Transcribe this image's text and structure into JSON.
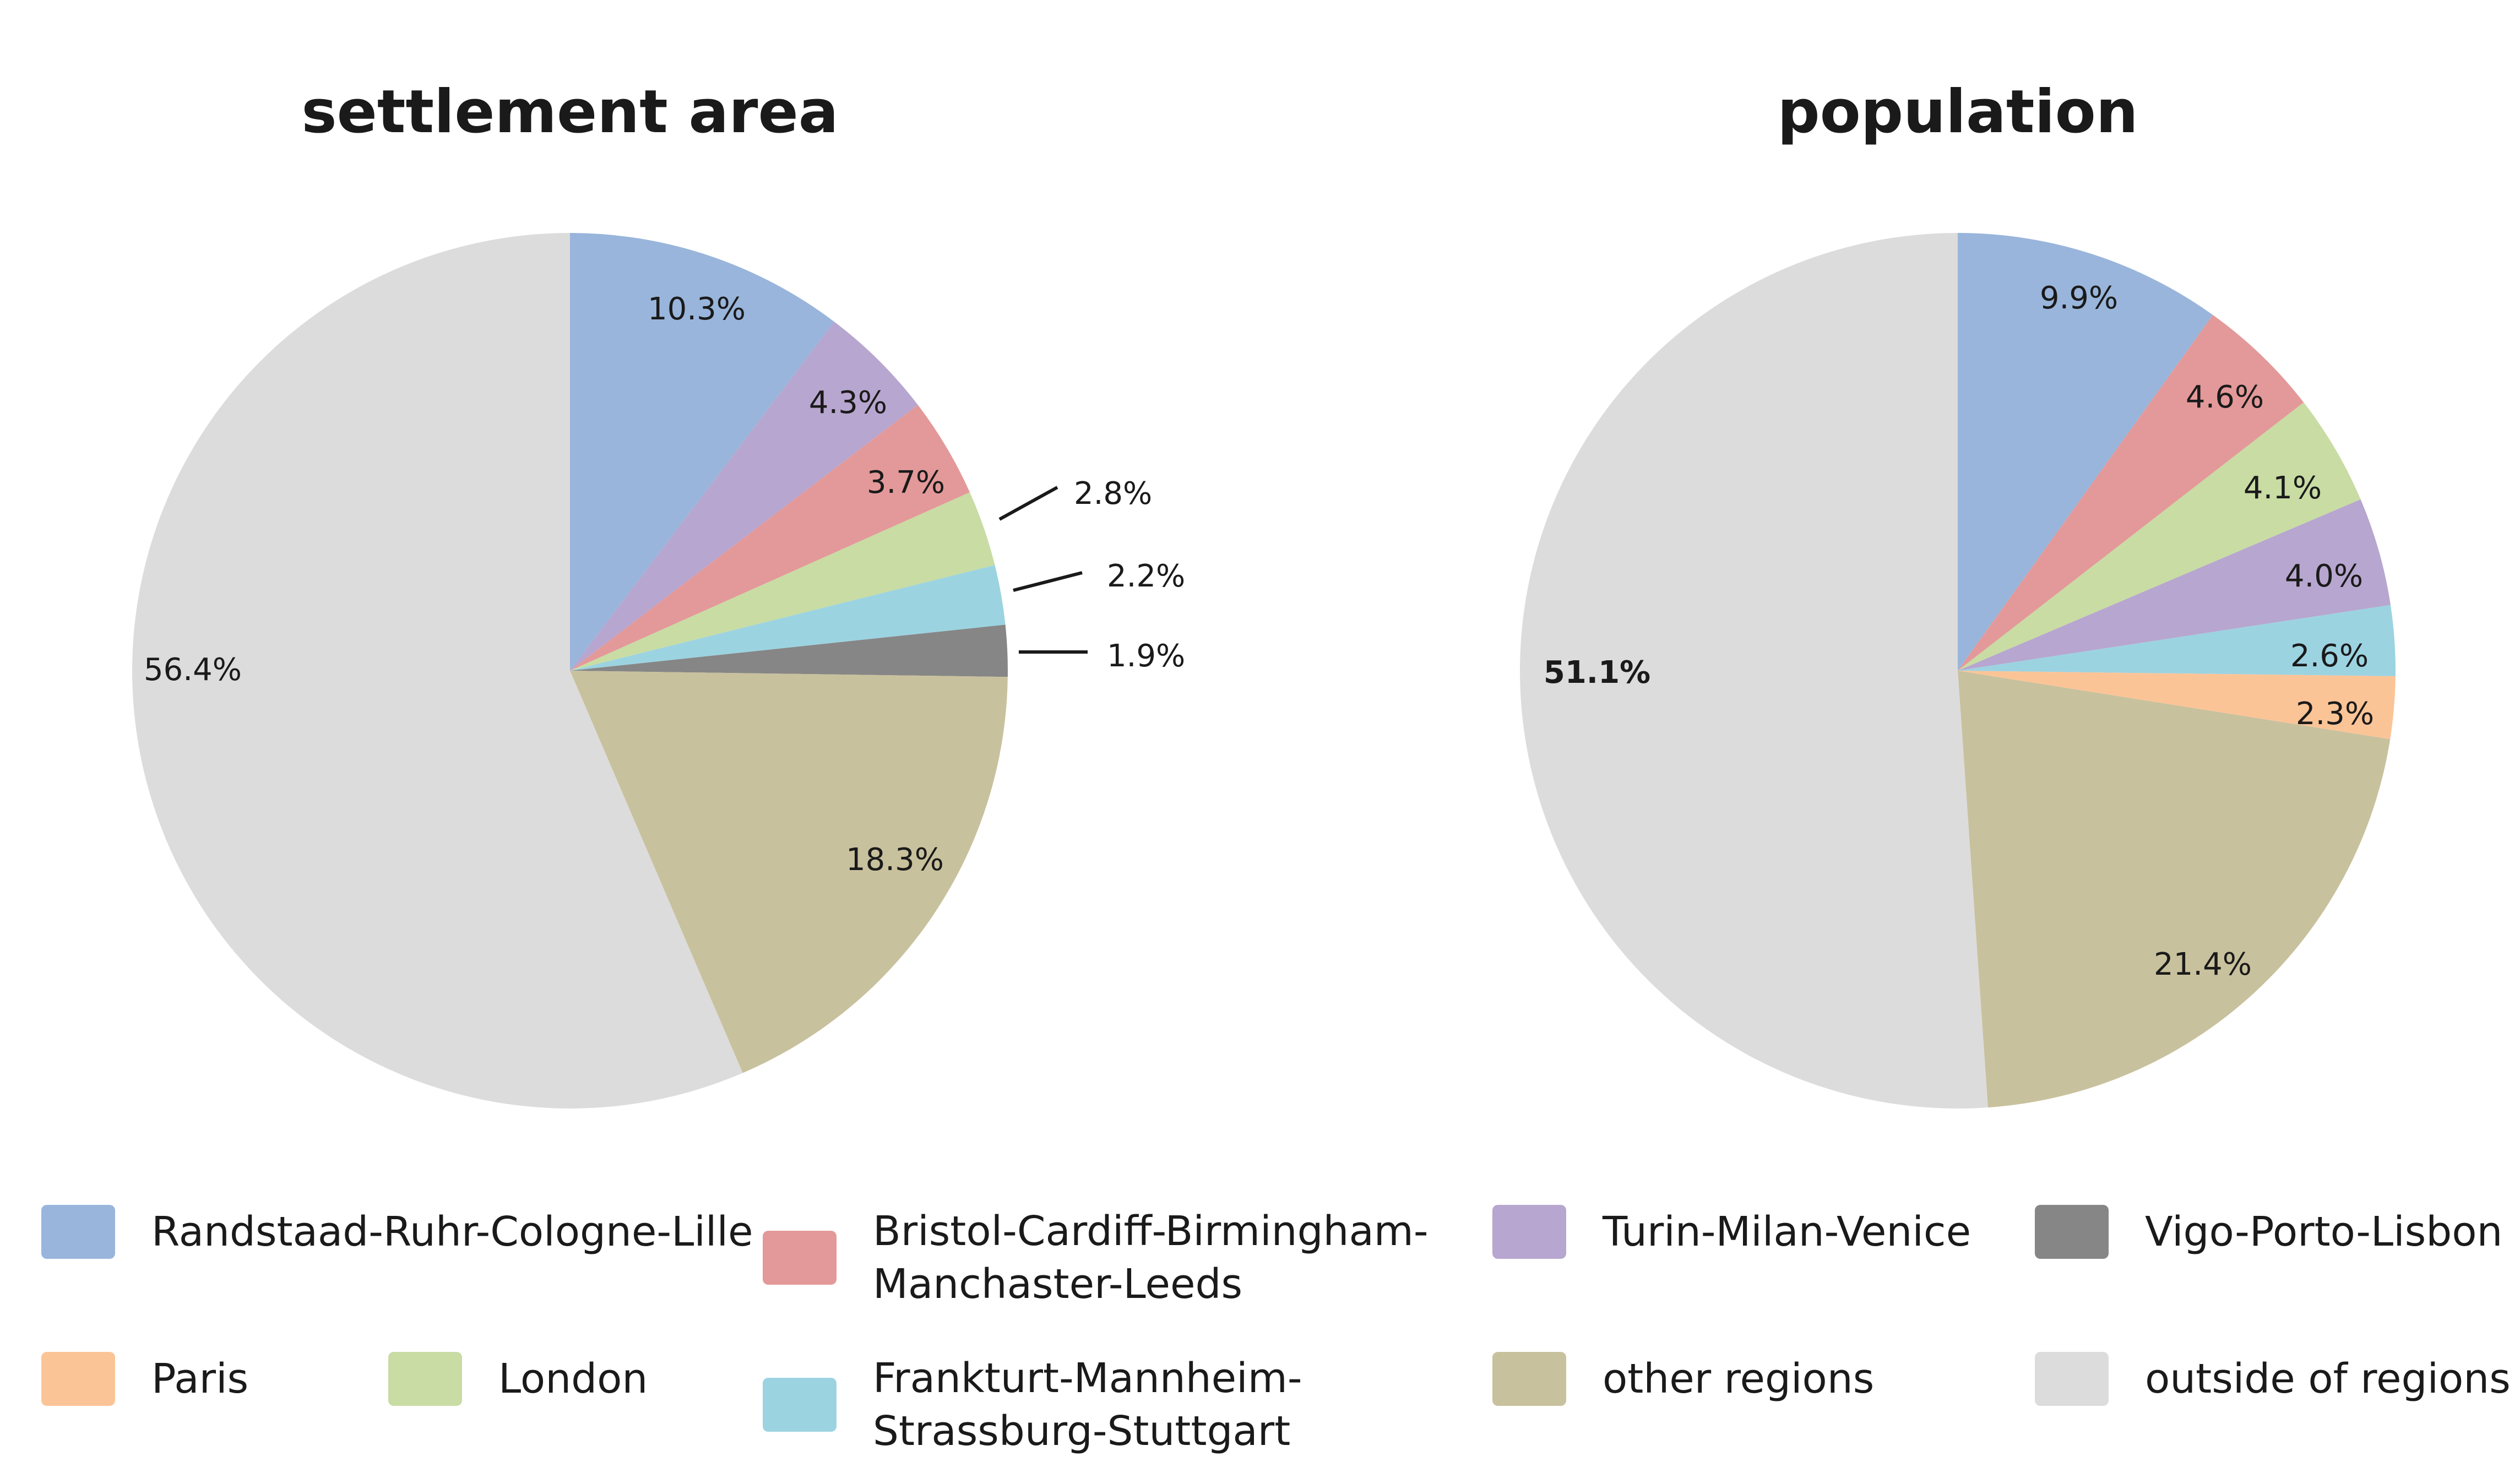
{
  "legend": [
    {
      "key": "randstaad",
      "label": "Randstaad-Ruhr-Cologne-Lille",
      "color": "#99b5db"
    },
    {
      "key": "bristol",
      "label_lines": [
        "Bristol-Cardiff-Birmingham-",
        "Manchaster-Leeds"
      ],
      "color": "#e39999"
    },
    {
      "key": "turin",
      "label": "Turin-Milan-Venice",
      "color": "#b7a6cf"
    },
    {
      "key": "vigo",
      "label": "Vigo-Porto-Lisbon",
      "color": "#868686"
    },
    {
      "key": "paris",
      "label": "Paris",
      "color": "#fbc497"
    },
    {
      "key": "london",
      "label": "London",
      "color": "#c8dca4"
    },
    {
      "key": "frankfurt",
      "label_lines": [
        "Frankturt-Mannheim-",
        "Strassburg-Stuttgart"
      ],
      "color": "#9cd3e1"
    },
    {
      "key": "other",
      "label": "other regions",
      "color": "#c8c19d"
    },
    {
      "key": "outside",
      "label": "outside of regions",
      "color": "#dcdcdc"
    }
  ],
  "chart_data": [
    {
      "type": "pie",
      "title": "settlement area",
      "slices": [
        {
          "name": "Randstaad-Ruhr-Cologne-Lille",
          "key": "randstaad",
          "value": 10.3,
          "label": "10.3%"
        },
        {
          "name": "Turin-Milan-Venice",
          "key": "turin",
          "value": 4.3,
          "label": "4.3%"
        },
        {
          "name": "Bristol-Cardiff-Birmingham-Manchaster-Leeds",
          "key": "bristol",
          "value": 3.7,
          "label": "3.7%"
        },
        {
          "name": "London",
          "key": "london",
          "value": 2.8,
          "label": "2.8%"
        },
        {
          "name": "Frankturt-Mannheim-Strassburg-Stuttgart",
          "key": "frankfurt",
          "value": 2.2,
          "label": "2.2%"
        },
        {
          "name": "Vigo-Porto-Lisbon",
          "key": "vigo",
          "value": 1.9,
          "label": "1.9%"
        },
        {
          "name": "other regions",
          "key": "other",
          "value": 18.3,
          "label": "18.3%"
        },
        {
          "name": "outside of regions",
          "key": "outside",
          "value": 56.4,
          "label": "56.4%"
        }
      ]
    },
    {
      "type": "pie",
      "title": "population",
      "slices": [
        {
          "name": "Randstaad-Ruhr-Cologne-Lille",
          "key": "randstaad",
          "value": 9.9,
          "label": "9.9%"
        },
        {
          "name": "Bristol-Cardiff-Birmingham-Manchaster-Leeds",
          "key": "bristol",
          "value": 4.6,
          "label": "4.6%"
        },
        {
          "name": "London",
          "key": "london",
          "value": 4.1,
          "label": "4.1%"
        },
        {
          "name": "Turin-Milan-Venice",
          "key": "turin",
          "value": 4.0,
          "label": "4.0%"
        },
        {
          "name": "Frankturt-Mannheim-Strassburg-Stuttgart",
          "key": "frankfurt",
          "value": 2.6,
          "label": "2.6%"
        },
        {
          "name": "Paris",
          "key": "paris",
          "value": 2.3,
          "label": "2.3%"
        },
        {
          "name": "other regions",
          "key": "other",
          "value": 21.4,
          "label": "21.4%"
        },
        {
          "name": "outside of regions",
          "key": "outside",
          "value": 51.1,
          "label": "51.1%"
        }
      ]
    }
  ]
}
